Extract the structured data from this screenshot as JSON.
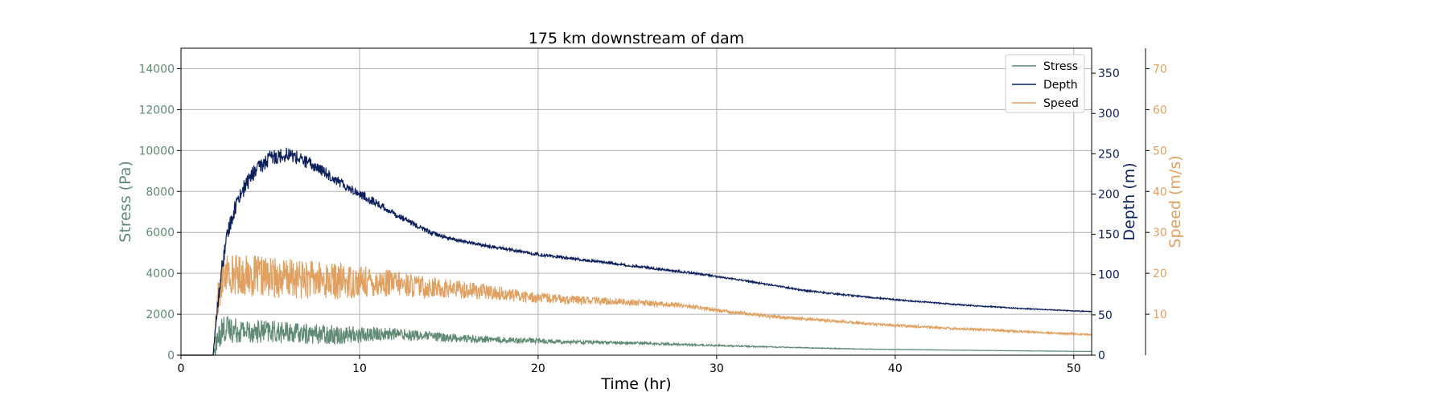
{
  "chart_data": {
    "type": "line",
    "title": "175 km downstream of dam",
    "xlabel": "Time (hr)",
    "xlim": [
      0,
      51
    ],
    "x_ticks": [
      0,
      10,
      20,
      30,
      40,
      50
    ],
    "grid": true,
    "legend_position": "top-right",
    "axes": {
      "stress": {
        "label": "Stress (Pa)",
        "side": "left",
        "color": "#5f8a73",
        "ylim": [
          0,
          15000
        ],
        "ticks": [
          0,
          2000,
          4000,
          6000,
          8000,
          10000,
          12000,
          14000
        ]
      },
      "depth": {
        "label": "Depth (m)",
        "side": "right",
        "color": "#0b1f5c",
        "ylim": [
          0,
          381
        ],
        "ticks": [
          0,
          50,
          100,
          150,
          200,
          250,
          300,
          350
        ]
      },
      "speed": {
        "label": "Speed (m/s)",
        "side": "right-outer",
        "color": "#e0a060",
        "ylim": [
          0,
          75
        ],
        "ticks": [
          10,
          20,
          30,
          40,
          50,
          60,
          70
        ]
      }
    },
    "series": [
      {
        "name": "Stress",
        "axis": "stress",
        "color": "#5f8a73",
        "x": [
          0,
          1.8,
          2.0,
          2.3,
          2.7,
          3.5,
          5,
          7,
          9,
          10,
          12,
          15,
          18,
          22,
          26,
          30,
          34,
          38,
          42,
          46,
          51
        ],
        "y": [
          0,
          0,
          600,
          1300,
          1250,
          1200,
          1150,
          1050,
          1000,
          1000,
          1050,
          850,
          750,
          650,
          580,
          470,
          380,
          300,
          260,
          220,
          180
        ],
        "noise": [
          0,
          0,
          600,
          700,
          650,
          600,
          550,
          500,
          450,
          420,
          300,
          220,
          150,
          100,
          60,
          40,
          25,
          15,
          10,
          8,
          5
        ]
      },
      {
        "name": "Depth",
        "axis": "depth",
        "color": "#0b1f5c",
        "x": [
          0,
          1.8,
          2.0,
          2.3,
          2.7,
          3.2,
          4,
          5,
          6,
          7,
          8,
          9,
          10,
          11,
          12,
          13,
          14,
          15,
          17,
          20,
          23,
          26,
          29,
          32,
          35,
          38,
          41,
          44,
          47,
          51
        ],
        "y": [
          0,
          0,
          50,
          110,
          160,
          195,
          225,
          245,
          250,
          240,
          228,
          213,
          200,
          188,
          175,
          163,
          152,
          145,
          136,
          125,
          117,
          109,
          101,
          91,
          80,
          73,
          67,
          62,
          58,
          54
        ],
        "noise": [
          0,
          0,
          8,
          10,
          10,
          10,
          10,
          10,
          9,
          8,
          7,
          6,
          6,
          5,
          4,
          3,
          3,
          2,
          2,
          2,
          1.5,
          1.5,
          1.2,
          1,
          1,
          1,
          0.8,
          0.8,
          0.6,
          0.5
        ]
      },
      {
        "name": "Speed",
        "axis": "speed",
        "color": "#e0a060",
        "x": [
          0,
          1.8,
          2.0,
          2.4,
          2.8,
          3.5,
          5,
          7,
          9,
          10,
          12,
          14,
          16,
          18,
          20,
          22,
          25,
          28,
          30,
          33,
          36,
          39,
          42,
          46,
          51
        ],
        "y": [
          0,
          0,
          12,
          20,
          20,
          19.5,
          19,
          18.5,
          18,
          18,
          17.5,
          16.5,
          16,
          15,
          14,
          13.5,
          13,
          12.2,
          11,
          9.5,
          8.5,
          7.5,
          6.8,
          6,
          5
        ],
        "noise": [
          0,
          0,
          4,
          5,
          5,
          5,
          5,
          4.8,
          4.5,
          4,
          3.2,
          2.6,
          2.2,
          1.7,
          1.3,
          1.1,
          0.8,
          0.6,
          0.5,
          0.4,
          0.35,
          0.3,
          0.3,
          0.25,
          0.2
        ]
      }
    ]
  }
}
